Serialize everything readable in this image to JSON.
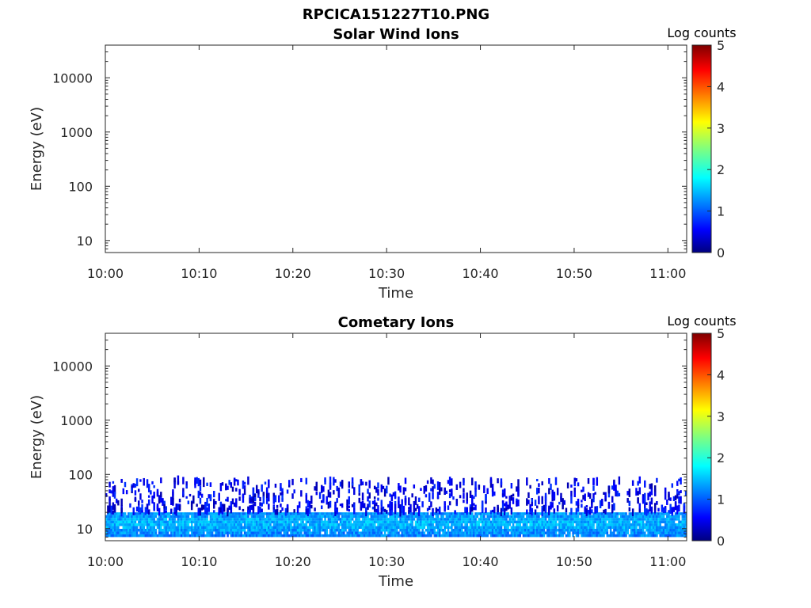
{
  "figure": {
    "title": "RPCICA151227T10.PNG"
  },
  "colormap": "jet",
  "chart_data": [
    {
      "type": "heatmap",
      "title": "Solar Wind Ions",
      "xlabel": "Time",
      "ylabel": "Energy (eV)",
      "x_ticks": [
        "10:00",
        "10:10",
        "10:20",
        "10:30",
        "10:40",
        "10:50",
        "11:00"
      ],
      "x_range": [
        "10:00",
        "11:02"
      ],
      "y_scale": "log",
      "y_ticks": [
        "10",
        "100",
        "1000",
        "10000"
      ],
      "y_range": [
        6,
        40000
      ],
      "colorbar": {
        "label": "Log counts",
        "ticks": [
          "0",
          "1",
          "2",
          "3",
          "4",
          "5"
        ],
        "range": [
          0,
          5
        ]
      },
      "data_description_values": {
        "has_counts": false
      }
    },
    {
      "type": "heatmap",
      "title": "Cometary Ions",
      "xlabel": "Time",
      "ylabel": "Energy (eV)",
      "x_ticks": [
        "10:00",
        "10:10",
        "10:20",
        "10:30",
        "10:40",
        "10:50",
        "11:00"
      ],
      "x_range": [
        "10:00",
        "11:02"
      ],
      "y_scale": "log",
      "y_ticks": [
        "10",
        "100",
        "1000",
        "10000"
      ],
      "y_range": [
        6,
        40000
      ],
      "colorbar": {
        "label": "Log counts",
        "ticks": [
          "0",
          "1",
          "2",
          "3",
          "4",
          "5"
        ],
        "range": [
          0,
          5
        ]
      },
      "data_description_values": {
        "has_counts": true,
        "core_band_energy_eV": [
          7,
          20
        ],
        "core_band_log_counts": [
          1,
          1.8
        ],
        "sparse_band_energy_eV": [
          20,
          80
        ],
        "sparse_band_log_counts": [
          0.2,
          0.9
        ]
      }
    }
  ]
}
